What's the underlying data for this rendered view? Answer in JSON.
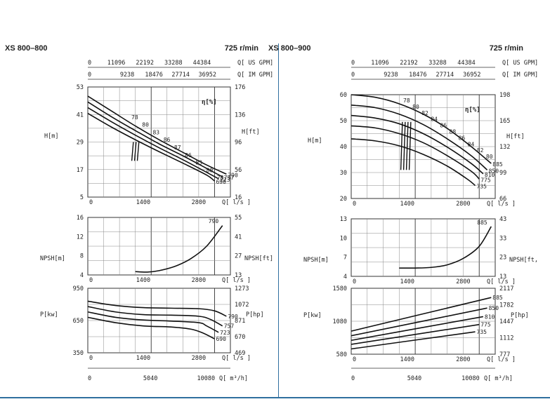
{
  "chart_data": [
    {
      "type": "line",
      "model": "XS 800–800",
      "speed": "725 r/min",
      "top_axes": {
        "us_gpm_ticks": [
          "0",
          "11096",
          "22192",
          "33288",
          "44384"
        ],
        "us_gpm_unit": "Q[ US GPM]",
        "im_gpm_ticks": [
          "0",
          "9238",
          "18476",
          "27714",
          "36952"
        ],
        "im_gpm_unit": "Q[ IM GPM]"
      },
      "head": {
        "ylabel_left": "H[m]",
        "ylabel_right": "H[ft]",
        "yticks_left": [
          "53",
          "41",
          "29",
          "17",
          "5"
        ],
        "yticks_right": [
          "176",
          "136",
          "96",
          "56",
          "16"
        ],
        "ylim": [
          5,
          53
        ],
        "xlim": [
          0,
          3600
        ],
        "xticks": [
          "0",
          "1400",
          "2800"
        ],
        "xunit": "Q[ l/s ]",
        "eta_label": "η[%]",
        "curves": [
          {
            "name": "790",
            "x": [
              0,
              600,
              1200,
              1800,
              2400,
              3000,
              3500
            ],
            "y": [
              49,
              42.5,
              36,
              30,
              24.5,
              19,
              15
            ]
          },
          {
            "name": "757",
            "x": [
              0,
              600,
              1200,
              1800,
              2400,
              3000,
              3400
            ],
            "y": [
              46.5,
              40,
              34,
              28.2,
              23,
              17.5,
              13.8
            ]
          },
          {
            "name": "723",
            "x": [
              0,
              600,
              1200,
              1800,
              2400,
              3000,
              3300
            ],
            "y": [
              44,
              37.8,
              32,
              26.5,
              21.3,
              15.8,
              13
            ]
          },
          {
            "name": "690",
            "x": [
              0,
              600,
              1200,
              1800,
              2400,
              3000,
              3200
            ],
            "y": [
              41.5,
              35.5,
              30,
              24.8,
              19.8,
              14.6,
              12
            ]
          }
        ],
        "eff_labels": [
          "78",
          "80",
          "83",
          "86",
          "87",
          "86",
          "83",
          "80",
          "78"
        ],
        "diam_labels": [
          "790",
          "757",
          "723",
          "690"
        ]
      },
      "npsh": {
        "ylabel_left": "NPSH[m]",
        "ylabel_right": "NPSH[ft]",
        "yticks_left": [
          "16",
          "12",
          "8",
          "4"
        ],
        "yticks_right": [
          "55",
          "41",
          "27",
          "13"
        ],
        "ylim": [
          4,
          16
        ],
        "xlim": [
          0,
          3600
        ],
        "xticks": [
          "0",
          "1400",
          "2800"
        ],
        "xunit": "Q[ l/s ]",
        "curves": [
          {
            "name": "790",
            "x": [
              1200,
              1500,
              1800,
              2200,
              2600,
              3000,
              3400
            ],
            "y": [
              4.7,
              4.6,
              4.9,
              5.8,
              7.4,
              10,
              14.3
            ]
          }
        ]
      },
      "power": {
        "ylabel_left": "P[kw]",
        "ylabel_right": "P[hp]",
        "yticks_left": [
          "950",
          "650",
          "350"
        ],
        "yticks_right": [
          "1273",
          "1072",
          "871",
          "670",
          "469"
        ],
        "ylim": [
          350,
          950
        ],
        "xlim": [
          0,
          3600
        ],
        "xticks": [
          "0",
          "1400",
          "2800"
        ],
        "xunit": "Q[ l/s ]",
        "curves": [
          {
            "name": "790",
            "x": [
              0,
              700,
              1400,
              2100,
              2800,
              3200,
              3500
            ],
            "y": [
              830,
              790,
              770,
              765,
              760,
              740,
              690
            ]
          },
          {
            "name": "757",
            "x": [
              0,
              700,
              1400,
              2100,
              2800,
              3100,
              3400
            ],
            "y": [
              780,
              730,
              705,
              700,
              690,
              660,
              600
            ]
          },
          {
            "name": "723",
            "x": [
              0,
              700,
              1400,
              2100,
              2800,
              3000,
              3300
            ],
            "y": [
              730,
              680,
              655,
              645,
              630,
              600,
              540
            ]
          },
          {
            "name": "690",
            "x": [
              0,
              700,
              1400,
              2100,
              2600,
              2900,
              3200
            ],
            "y": [
              680,
              630,
              600,
              590,
              570,
              535,
              480
            ]
          }
        ]
      },
      "bottom_axis": {
        "ticks": [
          "0",
          "5040",
          "10080"
        ],
        "unit": "Q[ m³/h]"
      }
    },
    {
      "type": "line",
      "model": "XS 800–900",
      "speed": "725 r/min",
      "top_axes": {
        "us_gpm_ticks": [
          "0",
          "11096",
          "22192",
          "33288",
          "44384"
        ],
        "us_gpm_unit": "Q[ US GPM]",
        "im_gpm_ticks": [
          "0",
          "9238",
          "18476",
          "27714",
          "36952"
        ],
        "im_gpm_unit": "Q[ IM GPM]"
      },
      "head": {
        "ylabel_left": "H[m]",
        "ylabel_right": "H[ft]",
        "yticks_left": [
          "60",
          "50",
          "40",
          "30",
          "20"
        ],
        "yticks_right": [
          "198",
          "165",
          "132",
          "99",
          "66"
        ],
        "ylim": [
          20,
          60
        ],
        "xlim": [
          0,
          3600
        ],
        "xticks": [
          "0",
          "1400",
          "2800"
        ],
        "xunit": "Q[ l/s ]",
        "eta_label": "η[%]",
        "curves": [
          {
            "name": "885",
            "x": [
              0,
              600,
              1200,
              1800,
              2400,
              3000,
              3500
            ],
            "y": [
              60,
              59,
              56.5,
              52.5,
              47,
              40,
              33.5
            ]
          },
          {
            "name": "850",
            "x": [
              0,
              600,
              1200,
              1800,
              2400,
              3000,
              3400
            ],
            "y": [
              56,
              55,
              52.5,
              48.5,
              43,
              36.5,
              31
            ]
          },
          {
            "name": "810",
            "x": [
              0,
              600,
              1200,
              1800,
              2400,
              3000,
              3300
            ],
            "y": [
              52,
              51,
              48.8,
              45,
              39.8,
              33.5,
              29.5
            ]
          },
          {
            "name": "775",
            "x": [
              0,
              600,
              1200,
              1800,
              2400,
              3000,
              3200
            ],
            "y": [
              48,
              47.2,
              45,
              41.5,
              36.5,
              30.5,
              27.5
            ]
          },
          {
            "name": "735",
            "x": [
              0,
              600,
              1200,
              1800,
              2400,
              2900,
              3100
            ],
            "y": [
              43,
              42.2,
              40.3,
              37,
              32.5,
              27.5,
              25
            ]
          }
        ],
        "eff_labels": [
          "78",
          "80",
          "82",
          "84",
          "86",
          "88",
          "86",
          "84",
          "82",
          "80"
        ],
        "diam_labels": [
          "885",
          "850",
          "810",
          "775",
          "735"
        ]
      },
      "npsh": {
        "ylabel_left": "NPSH[m]",
        "ylabel_right": "NPSH[ft,",
        "yticks_left": [
          "13",
          "10",
          "7",
          "4"
        ],
        "yticks_right": [
          "43",
          "33",
          "23",
          "13"
        ],
        "ylim": [
          4,
          13
        ],
        "xlim": [
          0,
          3600
        ],
        "xticks": [
          "0",
          "1400",
          "2800"
        ],
        "xunit": "Q[ l/s ]",
        "curves": [
          {
            "name": "885",
            "x": [
              1200,
              1600,
              2000,
              2400,
              2800,
              3200,
              3500
            ],
            "y": [
              5.3,
              5.3,
              5.4,
              5.8,
              6.8,
              8.7,
              11.8
            ]
          }
        ]
      },
      "power": {
        "ylabel_left": "P[kw]",
        "ylabel_right": "P[hp]",
        "yticks_left": [
          "1580",
          "1080",
          "580"
        ],
        "yticks_right": [
          "2117",
          "1782",
          "1447",
          "1112",
          "777"
        ],
        "ylim": [
          580,
          1580
        ],
        "xlim": [
          0,
          3600
        ],
        "xticks": [
          "0",
          "1400",
          "2800"
        ],
        "xunit": "Q[ l/s ]",
        "curves": [
          {
            "name": "885",
            "x": [
              0,
              3500
            ],
            "y": [
              930,
              1440
            ]
          },
          {
            "name": "850",
            "x": [
              0,
              3400
            ],
            "y": [
              860,
              1280
            ]
          },
          {
            "name": "810",
            "x": [
              0,
              3300
            ],
            "y": [
              790,
              1150
            ]
          },
          {
            "name": "775",
            "x": [
              0,
              3200
            ],
            "y": [
              730,
              1030
            ]
          },
          {
            "name": "735",
            "x": [
              0,
              3100
            ],
            "y": [
              660,
              920
            ]
          }
        ]
      },
      "bottom_axis": {
        "ticks": [
          "0",
          "5040",
          "10080"
        ],
        "unit": "Q[ m³/h]"
      }
    }
  ]
}
